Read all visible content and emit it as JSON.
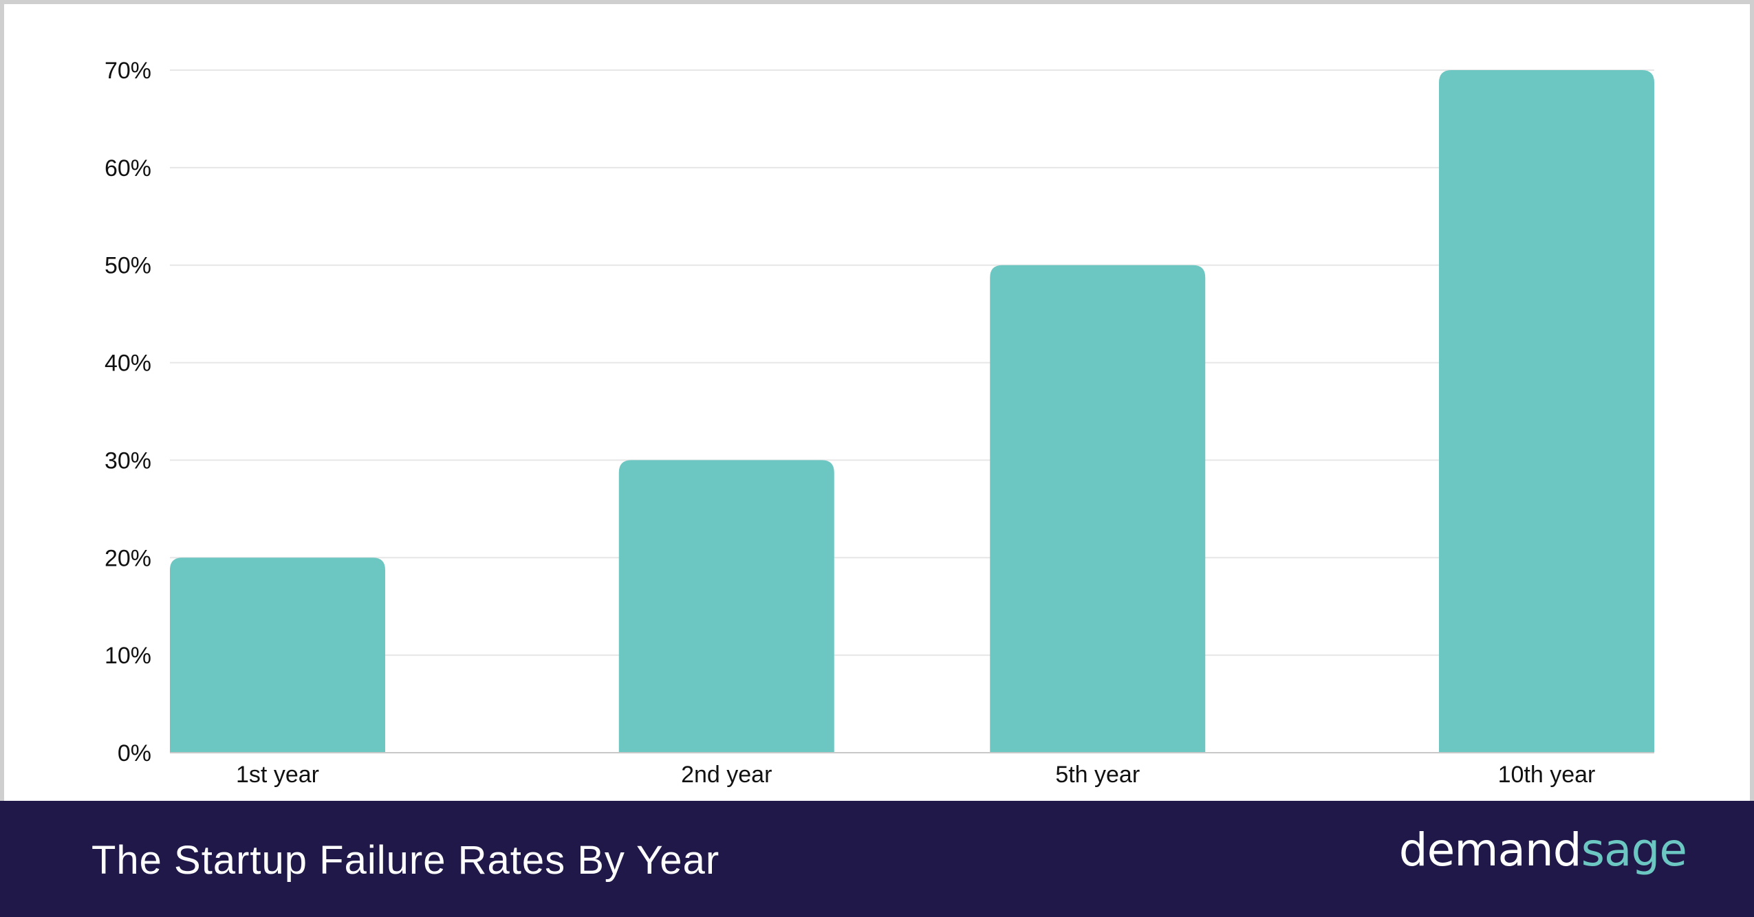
{
  "footer": {
    "title": "The Startup Failure Rates By Year",
    "brand_part1": "demand",
    "brand_part2": "sage"
  },
  "colors": {
    "bar": "#6cc7c2",
    "footer_background": "#1f1848",
    "brand_accent": "#6cc7c2",
    "grid": "#e6e6e6",
    "axis": "#c8c8c8",
    "text": "#111111"
  },
  "chart_data": {
    "type": "bar",
    "categories": [
      "1st year",
      "2nd year",
      "5th year",
      "10th year"
    ],
    "values": [
      20,
      30,
      50,
      70
    ],
    "ylim": [
      0,
      70
    ],
    "yticks": [
      0,
      10,
      20,
      30,
      40,
      50,
      60,
      70
    ],
    "ytick_labels": [
      "0%",
      "10%",
      "20%",
      "30%",
      "40%",
      "50%",
      "60%",
      "70%"
    ],
    "title": "",
    "xlabel": "",
    "ylabel": "",
    "grid": true,
    "legend": "none"
  }
}
